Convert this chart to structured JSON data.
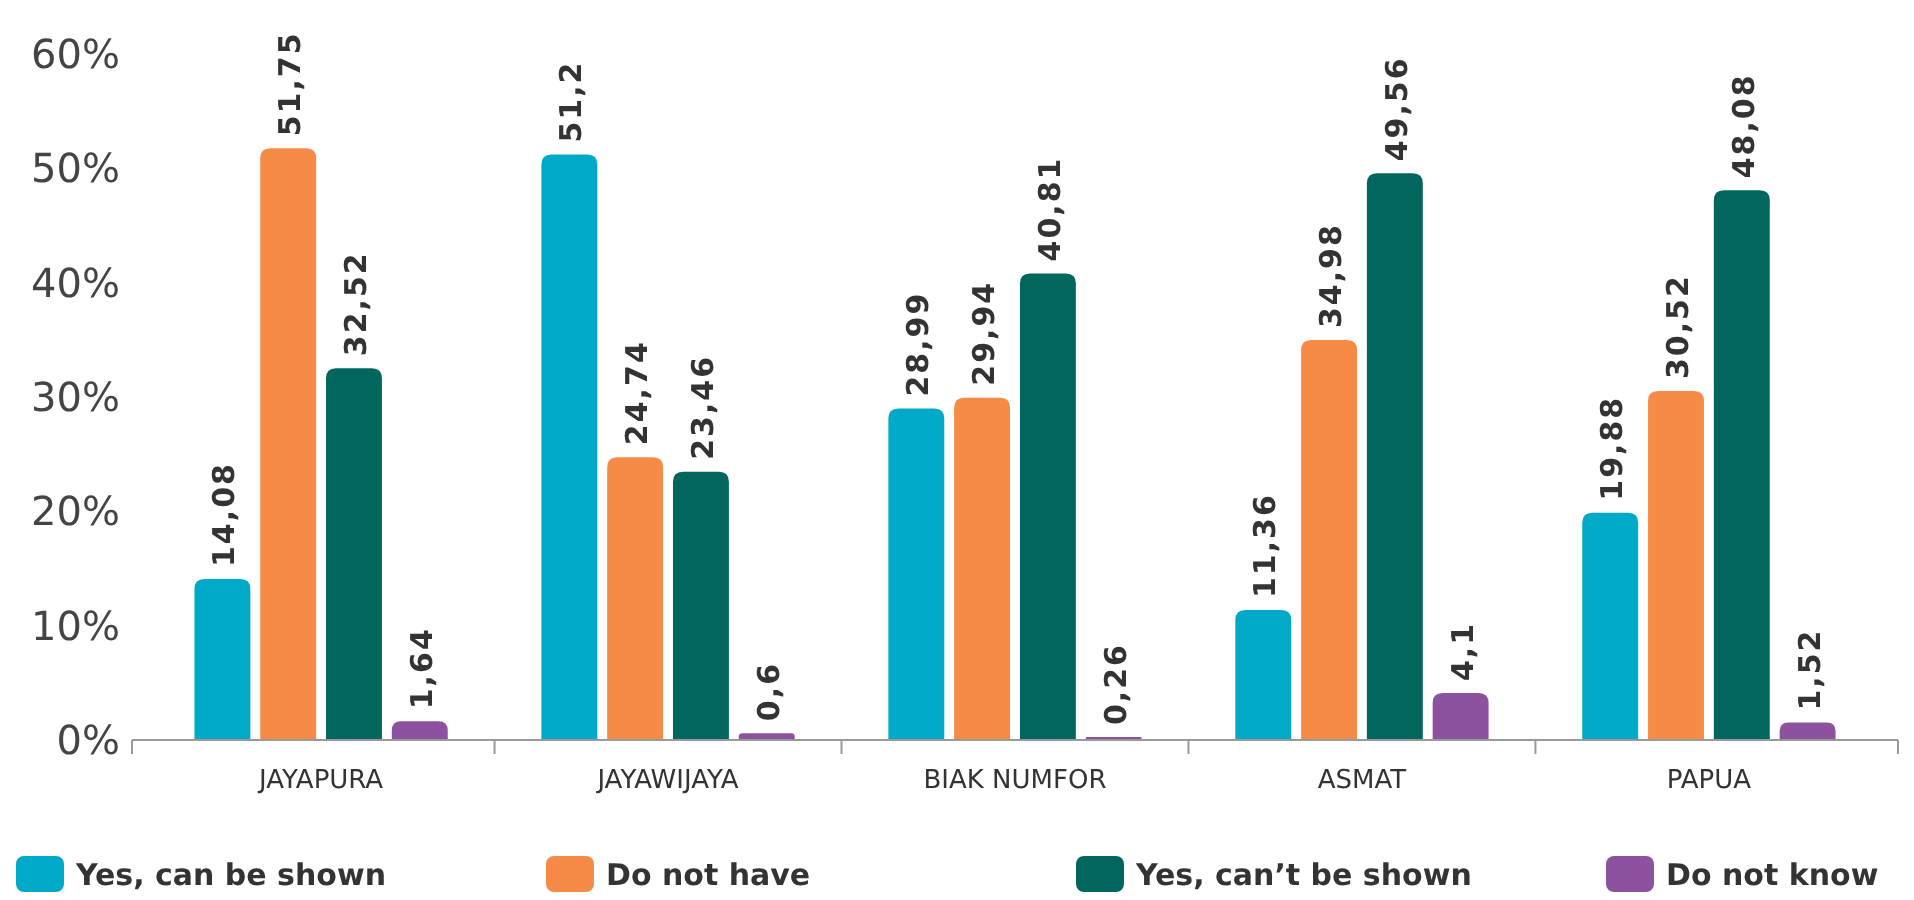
{
  "chart_data": {
    "type": "bar",
    "categories": [
      "JAYAPURA",
      "JAYAWIJAYA",
      "BIAK NUMFOR",
      "ASMAT",
      "PAPUA"
    ],
    "series": [
      {
        "name": "Yes, can be shown",
        "color": "#00a9c8",
        "values": [
          14.08,
          51.2,
          28.99,
          11.36,
          19.88
        ],
        "value_labels": [
          "14,08",
          "51,2",
          "28,99",
          "11,36",
          "19,88"
        ]
      },
      {
        "name": "Do not have",
        "color": "#f68b47",
        "values": [
          51.75,
          24.74,
          29.94,
          34.98,
          30.52
        ],
        "value_labels": [
          "51,75",
          "24,74",
          "29,94",
          "34,98",
          "30,52"
        ]
      },
      {
        "name": "Yes, can’t be shown",
        "color": "#00665e",
        "values": [
          32.52,
          23.46,
          40.81,
          49.56,
          48.08
        ],
        "value_labels": [
          "32,52",
          "23,46",
          "40,81",
          "49,56",
          "48,08"
        ]
      },
      {
        "name": "Do not know",
        "color": "#8c52a0",
        "values": [
          1.64,
          0.6,
          0.26,
          4.1,
          1.52
        ],
        "value_labels": [
          "1,64",
          "0,6",
          "0,26",
          "4,1",
          "1,52"
        ]
      }
    ],
    "ylim": [
      0,
      60
    ],
    "yticks": [
      {
        "value": 0,
        "label": "0%"
      },
      {
        "value": 10,
        "label": "10%"
      },
      {
        "value": 20,
        "label": "20%"
      },
      {
        "value": 30,
        "label": "30%"
      },
      {
        "value": 40,
        "label": "40%"
      },
      {
        "value": 50,
        "label": "50%"
      },
      {
        "value": 60,
        "label": "60%"
      }
    ],
    "grid": false,
    "legend": "bottom"
  }
}
